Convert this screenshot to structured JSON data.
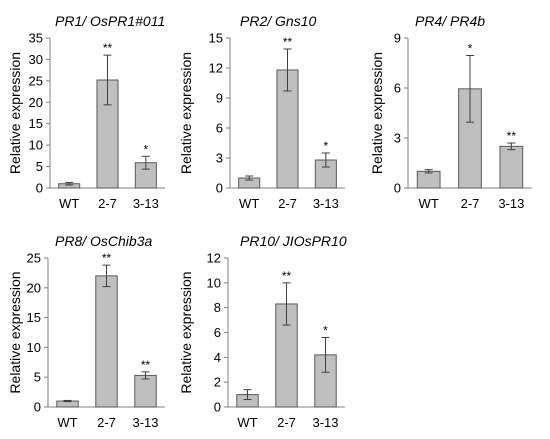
{
  "chart_data": [
    {
      "type": "bar",
      "title": "PR1/ OsPR1#011",
      "ylabel": "Relative expression",
      "categories": [
        "WT",
        "2-7",
        "3-13"
      ],
      "values": [
        1,
        25.2,
        5.9
      ],
      "errors": [
        0.3,
        5.8,
        1.5
      ],
      "significance": [
        "",
        "**",
        "*"
      ],
      "ylim": [
        0,
        35
      ],
      "yticks": [
        "0",
        "5",
        "10",
        "15",
        "20",
        "25",
        "30",
        "35"
      ],
      "bar_color": "#bfbfbf",
      "grid": false
    },
    {
      "type": "bar",
      "title": "PR2/ Gns10",
      "ylabel": "Relative expression",
      "categories": [
        "WT",
        "2-7",
        "3-13"
      ],
      "values": [
        1,
        11.8,
        2.8
      ],
      "errors": [
        0.2,
        2.1,
        0.7
      ],
      "significance": [
        "",
        "**",
        "*"
      ],
      "ylim": [
        0,
        15
      ],
      "yticks": [
        "0",
        "3",
        "6",
        "9",
        "12",
        "15"
      ],
      "bar_color": "#bfbfbf",
      "grid": false
    },
    {
      "type": "bar",
      "title": "PR4/ PR4b",
      "ylabel": "Relative expression",
      "categories": [
        "WT",
        "2-7",
        "3-13"
      ],
      "values": [
        1,
        5.95,
        2.5
      ],
      "errors": [
        0.1,
        2.0,
        0.2
      ],
      "significance": [
        "",
        "*",
        "**"
      ],
      "ylim": [
        0,
        9
      ],
      "yticks": [
        "0",
        "3",
        "6",
        "9"
      ],
      "bar_color": "#bfbfbf",
      "grid": false
    },
    {
      "type": "bar",
      "title": "PR8/ OsChib3a",
      "ylabel": "Relative expression",
      "categories": [
        "WT",
        "2-7",
        "3-13"
      ],
      "values": [
        1,
        22,
        5.3
      ],
      "errors": [
        0.1,
        1.8,
        0.6
      ],
      "significance": [
        "",
        "**",
        "**"
      ],
      "ylim": [
        0,
        25
      ],
      "yticks": [
        "0",
        "5",
        "10",
        "15",
        "20",
        "25"
      ],
      "bar_color": "#bfbfbf",
      "grid": false
    },
    {
      "type": "bar",
      "title": "PR10/ JIOsPR10",
      "ylabel": "Relative expression",
      "categories": [
        "WT",
        "2-7",
        "3-13"
      ],
      "values": [
        1,
        8.3,
        4.2
      ],
      "errors": [
        0.4,
        1.7,
        1.4
      ],
      "significance": [
        "",
        "**",
        "*"
      ],
      "ylim": [
        0,
        12
      ],
      "yticks": [
        "0",
        "2",
        "4",
        "6",
        "8",
        "10",
        "12"
      ],
      "bar_color": "#bfbfbf",
      "grid": false
    }
  ]
}
